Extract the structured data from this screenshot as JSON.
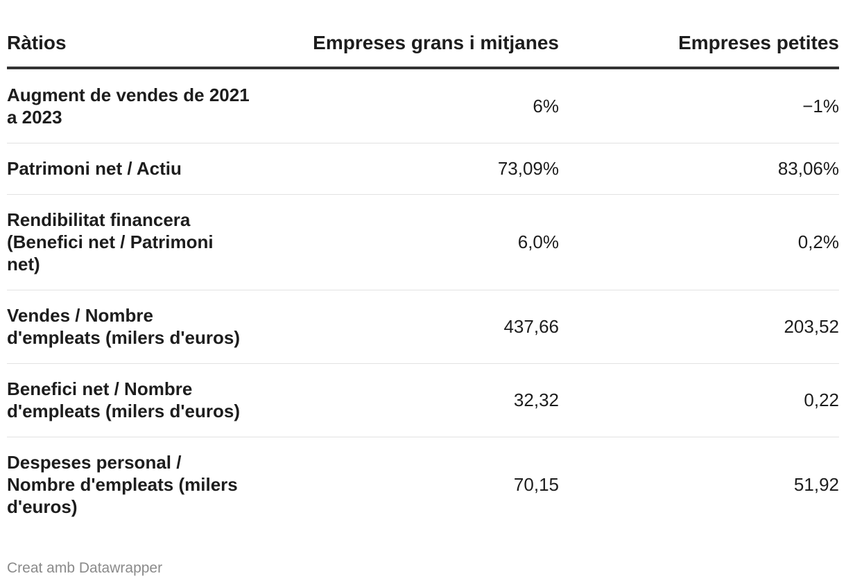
{
  "chart_data": {
    "type": "table",
    "columns": [
      "Ràtios",
      "Empreses grans i mitjanes",
      "Empreses petites"
    ],
    "rows": [
      {
        "label": "Augment de vendes de 2021 a 2023",
        "values": [
          "6%",
          "−1%"
        ]
      },
      {
        "label": "Patrimoni net / Actiu",
        "values": [
          "73,09%",
          "83,06%"
        ]
      },
      {
        "label": "Rendibilitat financera (Benefici net / Patrimoni net)",
        "values": [
          "6,0%",
          "0,2%"
        ]
      },
      {
        "label": "Vendes / Nombre d'empleats (milers d'euros)",
        "values": [
          "437,66",
          "203,52"
        ]
      },
      {
        "label": "Benefici net / Nombre d'empleats (milers d'euros)",
        "values": [
          "32,32",
          "0,22"
        ]
      },
      {
        "label": "Despeses personal / Nombre d'empleats (milers d'euros)",
        "values": [
          "70,15",
          "51,92"
        ]
      }
    ]
  },
  "footer": "Creat amb Datawrapper",
  "colors": {
    "text": "#1d1d1d",
    "header_rule": "#333333",
    "row_rule": "#e2e2e2",
    "footer_text": "#8a8a8a"
  }
}
